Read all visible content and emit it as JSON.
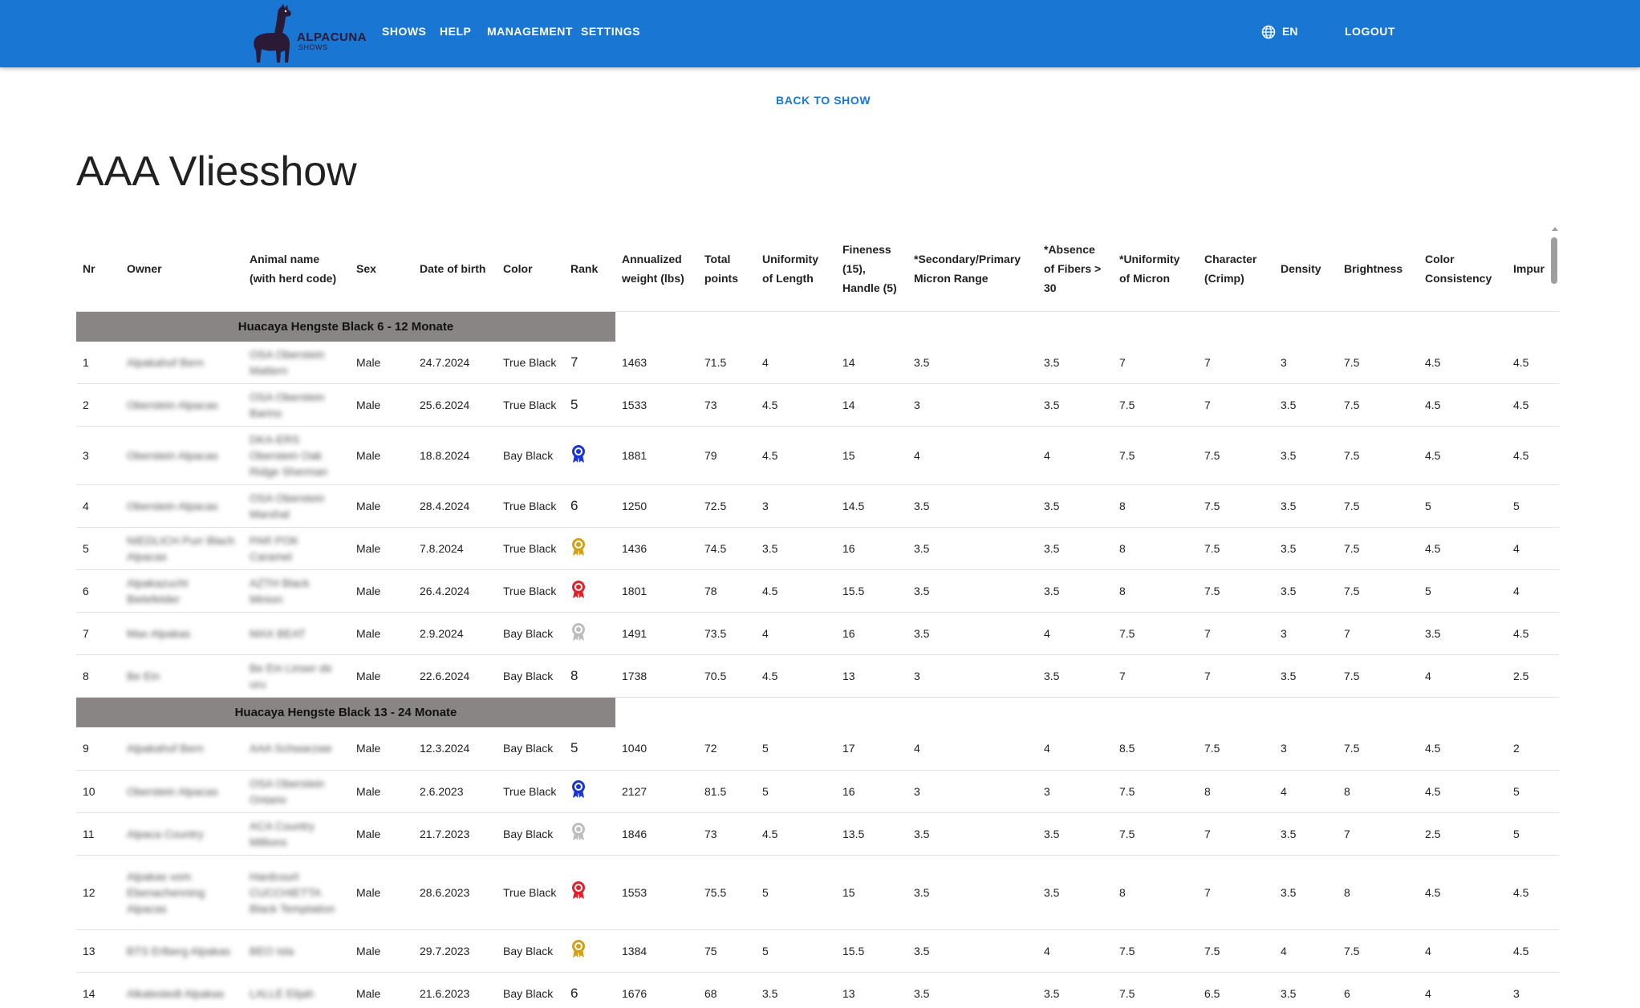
{
  "header": {
    "logo_text": "ALPACUNA",
    "logo_sub": "SHOWS",
    "nav": [
      "SHOWS",
      "HELP",
      "MANAGEMENT",
      "SETTINGS"
    ],
    "language": "EN",
    "logout": "LOGOUT"
  },
  "back_link": "BACK TO SHOW",
  "page_title": "AAA Vliesshow",
  "table": {
    "columns": [
      "Nr",
      "Owner",
      "Animal name (with herd code)",
      "Sex",
      "Date of birth",
      "Color",
      "Rank",
      "Annualized weight (lbs)",
      "Total points",
      "Uniformity of Length",
      "Fineness (15), Handle (5)",
      "*Secondary/Primary Micron Range",
      "*Absence of Fibers > 30",
      "*Uniformity of Micron",
      "Character (Crimp)",
      "Density",
      "Brightness",
      "Color Consistency",
      "Impur"
    ],
    "groups": [
      {
        "title": "Huacaya Hengste Black 6 - 12 Monate",
        "rows": [
          {
            "nr": "1",
            "owner": "Alpakahof Bern",
            "animal": "OSA Oberstein Mattern",
            "sex": "Male",
            "dob": "24.7.2024",
            "color": "True Black",
            "rank": "7",
            "weight": "1463",
            "total": "71.5",
            "uol": "4",
            "fineness": "14",
            "spmr": "3.5",
            "aof": "3.5",
            "uom": "7",
            "crimp": "7",
            "density": "3",
            "bright": "7.5",
            "colcons": "4.5",
            "impur": "4.5"
          },
          {
            "nr": "2",
            "owner": "Oberstein Alpacas",
            "animal": "OSA Oberstein Barino",
            "sex": "Male",
            "dob": "25.6.2024",
            "color": "True Black",
            "rank": "5",
            "weight": "1533",
            "total": "73",
            "uol": "4.5",
            "fineness": "14",
            "spmr": "3",
            "aof": "3.5",
            "uom": "7.5",
            "crimp": "7",
            "density": "3.5",
            "bright": "7.5",
            "colcons": "4.5",
            "impur": "4.5"
          },
          {
            "nr": "3",
            "owner": "Oberstein Alpacas",
            "animal": "DKA-ERS Oberstein Oak Ridge Sherman",
            "sex": "Male",
            "dob": "18.8.2024",
            "color": "Bay Black",
            "rank": "ribbon-blue",
            "weight": "1881",
            "total": "79",
            "uol": "4.5",
            "fineness": "15",
            "spmr": "4",
            "aof": "4",
            "uom": "7.5",
            "crimp": "7.5",
            "density": "3.5",
            "bright": "7.5",
            "colcons": "4.5",
            "impur": "4.5"
          },
          {
            "nr": "4",
            "owner": "Oberstein Alpacas",
            "animal": "OSA Oberstein Marshal",
            "sex": "Male",
            "dob": "28.4.2024",
            "color": "True Black",
            "rank": "6",
            "weight": "1250",
            "total": "72.5",
            "uol": "3",
            "fineness": "14.5",
            "spmr": "3.5",
            "aof": "3.5",
            "uom": "8",
            "crimp": "7.5",
            "density": "3.5",
            "bright": "7.5",
            "colcons": "5",
            "impur": "5"
          },
          {
            "nr": "5",
            "owner": "NIEDLICH Purr Blach Alpacas",
            "animal": "PAR POK Caramel",
            "sex": "Male",
            "dob": "7.8.2024",
            "color": "True Black",
            "rank": "ribbon-gold",
            "weight": "1436",
            "total": "74.5",
            "uol": "3.5",
            "fineness": "16",
            "spmr": "3.5",
            "aof": "3.5",
            "uom": "8",
            "crimp": "7.5",
            "density": "3.5",
            "bright": "7.5",
            "colcons": "4.5",
            "impur": "4"
          },
          {
            "nr": "6",
            "owner": "Alpakazucht Bielefelder",
            "animal": "AZTH Black Minion",
            "sex": "Male",
            "dob": "26.4.2024",
            "color": "True Black",
            "rank": "ribbon-red",
            "weight": "1801",
            "total": "78",
            "uol": "4.5",
            "fineness": "15.5",
            "spmr": "3.5",
            "aof": "3.5",
            "uom": "8",
            "crimp": "7.5",
            "density": "3.5",
            "bright": "7.5",
            "colcons": "5",
            "impur": "4"
          },
          {
            "nr": "7",
            "owner": "Max Alpakas",
            "animal": "MAX BEAT",
            "sex": "Male",
            "dob": "2.9.2024",
            "color": "Bay Black",
            "rank": "ribbon-silver",
            "weight": "1491",
            "total": "73.5",
            "uol": "4",
            "fineness": "16",
            "spmr": "3.5",
            "aof": "4",
            "uom": "7.5",
            "crimp": "7",
            "density": "3",
            "bright": "7",
            "colcons": "3.5",
            "impur": "4.5"
          },
          {
            "nr": "8",
            "owner": "Be Ein",
            "animal": "Be Ein Linser de uru",
            "sex": "Male",
            "dob": "22.6.2024",
            "color": "Bay Black",
            "rank": "8",
            "weight": "1738",
            "total": "70.5",
            "uol": "4.5",
            "fineness": "13",
            "spmr": "3",
            "aof": "3.5",
            "uom": "7",
            "crimp": "7",
            "density": "3.5",
            "bright": "7.5",
            "colcons": "4",
            "impur": "2.5"
          }
        ]
      },
      {
        "title": "Huacaya Hengste Black 13 - 24 Monate",
        "rows": [
          {
            "nr": "9",
            "owner": "Alpakahof Bern",
            "animal": "AAA Schwarzwe",
            "sex": "Male",
            "dob": "12.3.2024",
            "color": "Bay Black",
            "rank": "5",
            "weight": "1040",
            "total": "72",
            "uol": "5",
            "fineness": "17",
            "spmr": "4",
            "aof": "4",
            "uom": "8.5",
            "crimp": "7.5",
            "density": "3",
            "bright": "7.5",
            "colcons": "4.5",
            "impur": "2"
          },
          {
            "nr": "10",
            "owner": "Oberstein Alpacas",
            "animal": "OSA Oberstein Ontario",
            "sex": "Male",
            "dob": "2.6.2023",
            "color": "True Black",
            "rank": "ribbon-blue",
            "weight": "2127",
            "total": "81.5",
            "uol": "5",
            "fineness": "16",
            "spmr": "3",
            "aof": "3",
            "uom": "7.5",
            "crimp": "8",
            "density": "4",
            "bright": "8",
            "colcons": "4.5",
            "impur": "5"
          },
          {
            "nr": "11",
            "owner": "Alpaca Country",
            "animal": "ACA Country Millions",
            "sex": "Male",
            "dob": "21.7.2023",
            "color": "Bay Black",
            "rank": "ribbon-silver",
            "weight": "1846",
            "total": "73",
            "uol": "4.5",
            "fineness": "13.5",
            "spmr": "3.5",
            "aof": "3.5",
            "uom": "7.5",
            "crimp": "7",
            "density": "3.5",
            "bright": "7",
            "colcons": "2.5",
            "impur": "5"
          },
          {
            "nr": "12",
            "owner": "Alpakas vom Ebenachenning Alpacas",
            "animal": "Hardcourt CUCCHIETTA Black Temptation",
            "sex": "Male",
            "dob": "28.6.2023",
            "color": "True Black",
            "rank": "ribbon-red",
            "weight": "1553",
            "total": "75.5",
            "uol": "5",
            "fineness": "15",
            "spmr": "3.5",
            "aof": "3.5",
            "uom": "8",
            "crimp": "7",
            "density": "3.5",
            "bright": "8",
            "colcons": "4.5",
            "impur": "4.5"
          },
          {
            "nr": "13",
            "owner": "BTS Erlberg Alpakas",
            "animal": "BEO Isla",
            "sex": "Male",
            "dob": "29.7.2023",
            "color": "Bay Black",
            "rank": "ribbon-gold",
            "weight": "1384",
            "total": "75",
            "uol": "5",
            "fineness": "15.5",
            "spmr": "3.5",
            "aof": "4",
            "uom": "7.5",
            "crimp": "7.5",
            "density": "4",
            "bright": "7.5",
            "colcons": "4",
            "impur": "4.5"
          },
          {
            "nr": "14",
            "owner": "Alkalestedt Alpakas",
            "animal": "LALLE Elijah",
            "sex": "Male",
            "dob": "21.6.2023",
            "color": "Bay Black",
            "rank": "6",
            "weight": "1676",
            "total": "68",
            "uol": "3.5",
            "fineness": "13",
            "spmr": "3.5",
            "aof": "3.5",
            "uom": "7.5",
            "crimp": "6.5",
            "density": "3.5",
            "bright": "6",
            "colcons": "4",
            "impur": "3"
          }
        ]
      }
    ]
  },
  "colors": {
    "primary": "#1976d2",
    "group_bg": "#8a8585",
    "ribbon_blue": "#1a35d6",
    "ribbon_gold": "#d4a017",
    "ribbon_red": "#e0202a",
    "ribbon_silver": "#bdbdbd"
  }
}
